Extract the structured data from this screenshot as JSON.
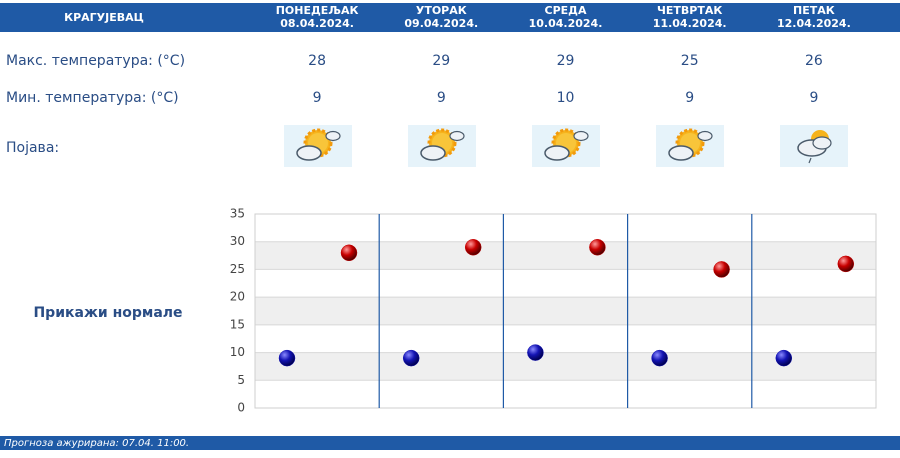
{
  "table": {
    "city": "КРАГУЈЕВАЦ",
    "days": [
      {
        "name": "ПОНЕДЕЉАК",
        "date": "08.04.2024."
      },
      {
        "name": "УТОРАК",
        "date": "09.04.2024."
      },
      {
        "name": "СРЕДА",
        "date": "10.04.2024."
      },
      {
        "name": "ЧЕТВРТАК",
        "date": "11.04.2024."
      },
      {
        "name": "ПЕТАК",
        "date": "12.04.2024."
      }
    ],
    "row_labels": [
      "Макс. температура: (°C)",
      "Мин. температура: (°C)",
      "Појава:"
    ]
  },
  "chart_data": {
    "type": "dot",
    "series": [
      {
        "color": "#1414b4",
        "values": [
          9,
          9,
          10,
          9,
          9
        ]
      },
      {
        "color": "#c80000",
        "values": [
          28,
          29,
          29,
          25,
          26
        ]
      }
    ],
    "ylim": [
      0,
      35
    ],
    "yticks": [
      0,
      5,
      10,
      15,
      20,
      25,
      30,
      35
    ],
    "grid": true
  },
  "button": "Прикажи нормале",
  "footer": "Прогноза ажурирана:  07.04. 11:00."
}
